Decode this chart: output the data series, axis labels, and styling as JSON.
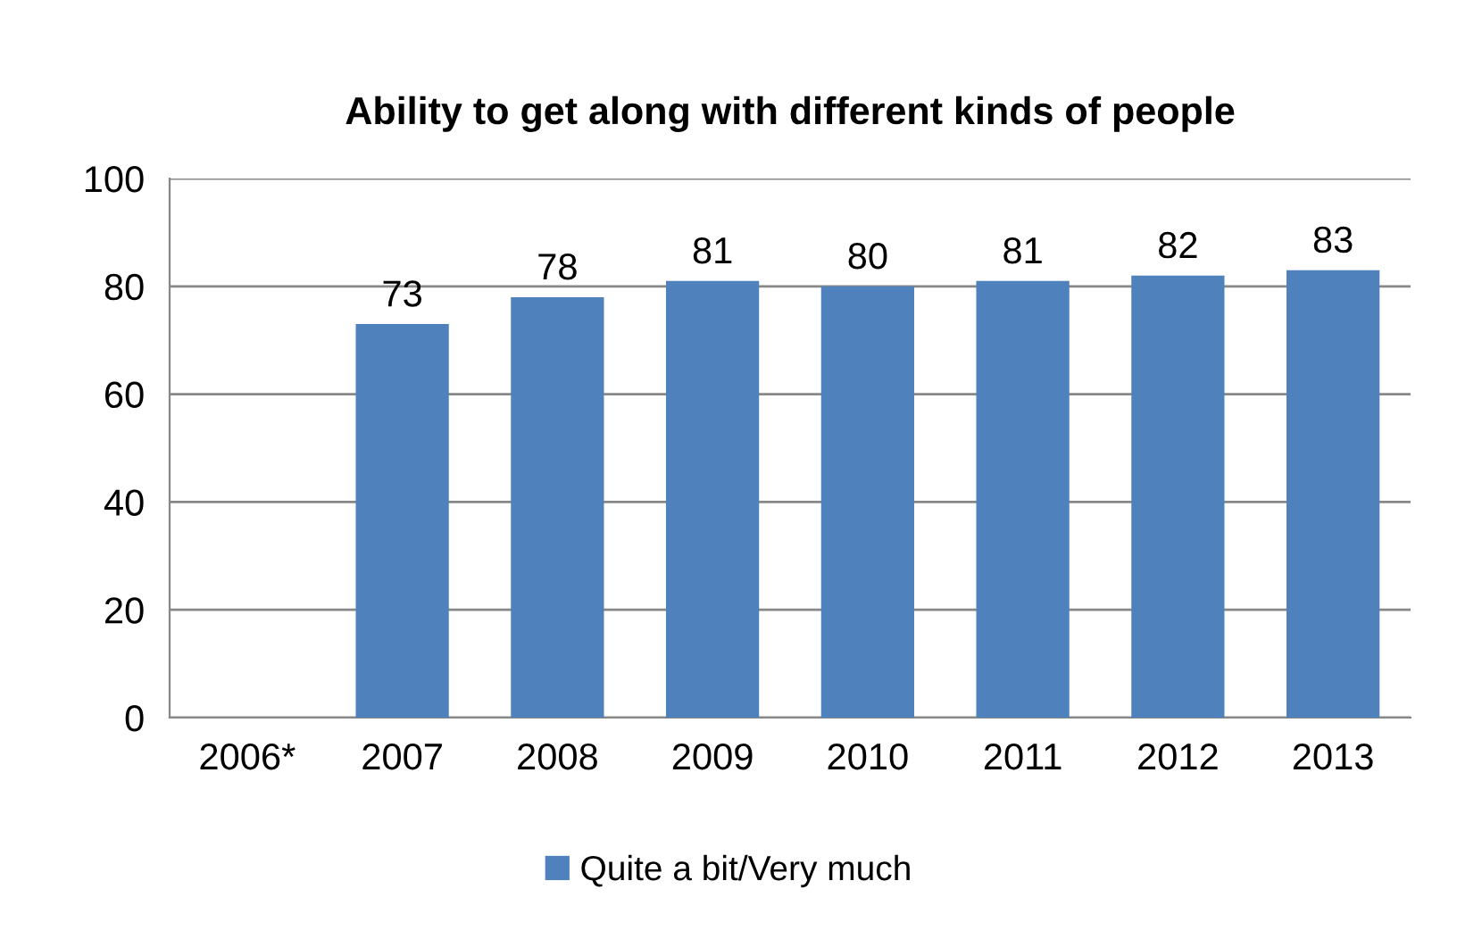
{
  "chart_data": {
    "type": "bar",
    "title": "Ability to get along with different kinds of people",
    "categories": [
      "2006*",
      "2007",
      "2008",
      "2009",
      "2010",
      "2011",
      "2012",
      "2013"
    ],
    "series": [
      {
        "name": "Quite a bit/Very much",
        "color": "#4f81bd",
        "values": [
          null,
          73,
          78,
          81,
          80,
          81,
          82,
          83
        ]
      }
    ],
    "ylim": [
      0,
      100
    ],
    "yticks": [
      0,
      20,
      40,
      60,
      80,
      100
    ],
    "grid": "y",
    "legend": "bottom",
    "data_labels": true
  }
}
